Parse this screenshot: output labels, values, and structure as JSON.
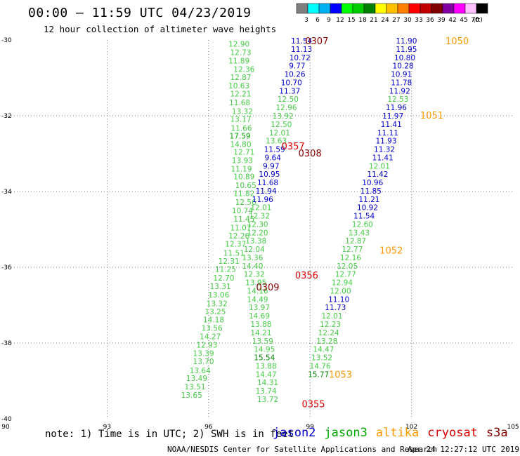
{
  "title": "00:00 – 11:59 UTC 04/23/2019",
  "subtitle": "12 hour collection of altimeter wave heights",
  "note": "note: 1) Time is in UTC; 2) SWH is in feet",
  "credit": "NOAA/NESDIS Center for Satellite Applications and Research",
  "timestamp": "Apr 24 12:27:12 UTC 2019",
  "satellites": [
    {
      "name": "jason2",
      "color": "#0000cc"
    },
    {
      "name": "jason3",
      "color": "#00aa00"
    },
    {
      "name": "altika",
      "color": "#ff9900"
    },
    {
      "name": "cryosat",
      "color": "#dd0000"
    },
    {
      "name": "s3a",
      "color": "#880000"
    }
  ],
  "legend": {
    "unit": "(ft)",
    "bins": [
      {
        "label": "3",
        "color": "#7f7f7f"
      },
      {
        "label": "6",
        "color": "#00ffff"
      },
      {
        "label": "9",
        "color": "#00b0f0"
      },
      {
        "label": "12",
        "color": "#0000ff"
      },
      {
        "label": "15",
        "color": "#00ff00"
      },
      {
        "label": "18",
        "color": "#00cc00"
      },
      {
        "label": "21",
        "color": "#008000"
      },
      {
        "label": "24",
        "color": "#ffff00"
      },
      {
        "label": "27",
        "color": "#ffc000"
      },
      {
        "label": "30",
        "color": "#ff8000"
      },
      {
        "label": "33",
        "color": "#ff0000"
      },
      {
        "label": "36",
        "color": "#c00000"
      },
      {
        "label": "39",
        "color": "#800000"
      },
      {
        "label": "42",
        "color": "#8000a0"
      },
      {
        "label": "45",
        "color": "#ff00ff"
      },
      {
        "label": "70",
        "color": "#ffc0ff"
      },
      {
        "label": "",
        "color": "#000000"
      }
    ]
  },
  "chart_data": {
    "type": "scatter",
    "xlim": [
      90,
      105
    ],
    "ylim": [
      -40,
      -30
    ],
    "xticks": [
      "90",
      "93",
      "96",
      "99",
      "102",
      "105"
    ],
    "yticks": [
      "-30",
      "-32",
      "-34",
      "-36",
      "-38",
      "-40"
    ],
    "grid": true,
    "colors": {
      "low": "#00bb00",
      "mid": "#0000cc",
      "jason3": "#44cc44",
      "jason2": "#0000cc",
      "altika": "#ff9900",
      "cryosat": "#dd0000",
      "s3a": "#880000"
    },
    "tracks": [
      {
        "satellite": "jason3",
        "points": [
          [
            96.9,
            -30.1,
            "12.90"
          ],
          [
            96.95,
            -30.32,
            "12.73"
          ],
          [
            96.9,
            -30.55,
            "11.89"
          ],
          [
            97.05,
            -30.77,
            "12.36"
          ],
          [
            96.95,
            -30.98,
            "12.87"
          ],
          [
            96.9,
            -31.2,
            "10.63"
          ],
          [
            96.95,
            -31.42,
            "12.21"
          ],
          [
            96.92,
            -31.65,
            "11.68"
          ],
          [
            97.0,
            -31.88,
            "13.32"
          ],
          [
            96.95,
            -32.08,
            "13.17"
          ],
          [
            96.97,
            -32.32,
            "11.66"
          ],
          [
            96.93,
            -32.53,
            "17.59"
          ],
          [
            96.95,
            -32.75,
            "14.80"
          ],
          [
            97.05,
            -32.95,
            "12.71"
          ],
          [
            97.0,
            -33.18,
            "13.93"
          ],
          [
            96.97,
            -33.4,
            "11.19"
          ],
          [
            97.05,
            -33.6,
            "10.89"
          ],
          [
            97.1,
            -33.83,
            "10.65"
          ],
          [
            97.05,
            -34.05,
            "11.82"
          ],
          [
            97.1,
            -34.28,
            "12.56"
          ],
          [
            97.0,
            -34.5,
            "10.74"
          ],
          [
            97.05,
            -34.72,
            "11.45"
          ],
          [
            96.95,
            -34.95,
            "11.07"
          ],
          [
            96.9,
            -35.17,
            "12.26"
          ],
          [
            96.8,
            -35.38,
            "12.37"
          ],
          [
            96.75,
            -35.62,
            "11.51"
          ],
          [
            96.6,
            -35.83,
            "12.31"
          ],
          [
            96.5,
            -36.05,
            "11.25"
          ],
          [
            96.45,
            -36.28,
            "12.70"
          ],
          [
            96.35,
            -36.5,
            "13.31"
          ],
          [
            96.3,
            -36.72,
            "13.06"
          ],
          [
            96.25,
            -36.95,
            "13.32"
          ],
          [
            96.2,
            -37.17,
            "13.25"
          ],
          [
            96.15,
            -37.38,
            "14.18"
          ],
          [
            96.1,
            -37.6,
            "13.56"
          ],
          [
            96.05,
            -37.82,
            "14.27"
          ],
          [
            95.95,
            -38.05,
            "12.93"
          ],
          [
            95.85,
            -38.27,
            "13.39"
          ],
          [
            95.85,
            -38.48,
            "13.70"
          ],
          [
            95.75,
            -38.72,
            "13.64"
          ],
          [
            95.65,
            -38.93,
            "13.49"
          ],
          [
            95.6,
            -39.15,
            "13.51"
          ],
          [
            95.5,
            -39.37,
            "13.65"
          ]
        ]
      },
      {
        "satellite": "jason2",
        "points": [
          [
            98.75,
            -30.02,
            "11.54"
          ],
          [
            98.75,
            -30.24,
            "11.13"
          ],
          [
            98.7,
            -30.46,
            "10.72"
          ],
          [
            98.62,
            -30.68,
            "9.77"
          ],
          [
            98.55,
            -30.9,
            "10.26"
          ],
          [
            98.45,
            -31.12,
            "10.70"
          ],
          [
            98.4,
            -31.34,
            "11.37"
          ],
          [
            98.35,
            -31.56,
            "12.50"
          ],
          [
            98.3,
            -31.78,
            "12.96"
          ],
          [
            98.2,
            -32.0,
            "13.92"
          ],
          [
            98.15,
            -32.22,
            "12.50"
          ],
          [
            98.1,
            -32.44,
            "12.01"
          ],
          [
            98.0,
            -32.66,
            "13.63"
          ],
          [
            97.95,
            -32.88,
            "11.59"
          ],
          [
            97.9,
            -33.1,
            "9.64"
          ],
          [
            97.85,
            -33.32,
            "9.97"
          ],
          [
            97.8,
            -33.54,
            "10.95"
          ],
          [
            97.75,
            -33.76,
            "11.68"
          ],
          [
            97.7,
            -33.98,
            "11.94"
          ],
          [
            97.6,
            -34.2,
            "11.96"
          ],
          [
            97.55,
            -34.42,
            "12.01"
          ],
          [
            97.5,
            -34.64,
            "12.32"
          ],
          [
            97.45,
            -34.86,
            "12.30"
          ],
          [
            97.45,
            -35.08,
            "12.20"
          ],
          [
            97.4,
            -35.3,
            "13.38"
          ],
          [
            97.35,
            -35.52,
            "12.04"
          ],
          [
            97.3,
            -35.74,
            "13.36"
          ],
          [
            97.3,
            -35.96,
            "14.40"
          ],
          [
            97.35,
            -36.18,
            "12.32"
          ],
          [
            97.4,
            -36.4,
            "13.95"
          ],
          [
            97.45,
            -36.62,
            "14.16"
          ],
          [
            97.45,
            -36.84,
            "14.49"
          ],
          [
            97.5,
            -37.06,
            "13.97"
          ],
          [
            97.5,
            -37.28,
            "14.69"
          ],
          [
            97.55,
            -37.5,
            "13.88"
          ],
          [
            97.55,
            -37.72,
            "14.21"
          ],
          [
            97.6,
            -37.94,
            "13.59"
          ],
          [
            97.65,
            -38.16,
            "14.95"
          ],
          [
            97.65,
            -38.38,
            "15.54"
          ],
          [
            97.7,
            -38.6,
            "13.88"
          ],
          [
            97.7,
            -38.82,
            "14.47"
          ],
          [
            97.75,
            -39.04,
            "14.31"
          ],
          [
            97.7,
            -39.26,
            "13.74"
          ],
          [
            97.75,
            -39.48,
            "13.72"
          ]
        ]
      },
      {
        "satellite": "jason2",
        "points": [
          [
            101.85,
            -30.02,
            "11.90"
          ],
          [
            101.85,
            -30.24,
            "11.95"
          ],
          [
            101.8,
            -30.46,
            "10.80"
          ],
          [
            101.75,
            -30.68,
            "10.28"
          ],
          [
            101.7,
            -30.9,
            "10.91"
          ],
          [
            101.7,
            -31.12,
            "11.78"
          ],
          [
            101.65,
            -31.34,
            "11.92"
          ],
          [
            101.6,
            -31.56,
            "12.53"
          ],
          [
            101.55,
            -31.78,
            "11.96"
          ],
          [
            101.45,
            -32.0,
            "11.97"
          ],
          [
            101.4,
            -32.22,
            "11.41"
          ],
          [
            101.3,
            -32.44,
            "11.11"
          ],
          [
            101.25,
            -32.66,
            "11.93"
          ],
          [
            101.2,
            -32.88,
            "11.32"
          ],
          [
            101.15,
            -33.1,
            "11.41"
          ],
          [
            101.05,
            -33.32,
            "12.01"
          ],
          [
            101.0,
            -33.54,
            "11.42"
          ],
          [
            100.85,
            -33.76,
            "10.96"
          ],
          [
            100.8,
            -33.98,
            "11.85"
          ],
          [
            100.75,
            -34.2,
            "11.21"
          ],
          [
            100.7,
            -34.42,
            "10.92"
          ],
          [
            100.6,
            -34.64,
            "11.54"
          ],
          [
            100.55,
            -34.86,
            "12.60"
          ],
          [
            100.45,
            -35.08,
            "13.43"
          ],
          [
            100.35,
            -35.3,
            "12.87"
          ],
          [
            100.25,
            -35.52,
            "12.77"
          ],
          [
            100.2,
            -35.74,
            "12.16"
          ],
          [
            100.1,
            -35.96,
            "12.05"
          ],
          [
            100.05,
            -36.18,
            "12.77"
          ],
          [
            99.95,
            -36.4,
            "12.94"
          ],
          [
            99.9,
            -36.62,
            "12.00"
          ],
          [
            99.85,
            -36.84,
            "11.10"
          ],
          [
            99.75,
            -37.06,
            "11.73"
          ],
          [
            99.65,
            -37.28,
            "12.01"
          ],
          [
            99.6,
            -37.5,
            "12.23"
          ],
          [
            99.55,
            -37.72,
            "12.24"
          ],
          [
            99.5,
            -37.94,
            "13.28"
          ],
          [
            99.4,
            -38.16,
            "14.47"
          ],
          [
            99.35,
            -38.38,
            "13.52"
          ],
          [
            99.3,
            -38.6,
            "14.76"
          ],
          [
            99.25,
            -38.82,
            "15.77"
          ]
        ]
      }
    ],
    "track_labels": [
      {
        "x": 99.2,
        "y": -30.02,
        "text": "0307",
        "satellite": "s3a"
      },
      {
        "x": 103.35,
        "y": -30.02,
        "text": "1050",
        "satellite": "altika"
      },
      {
        "x": 102.6,
        "y": -31.98,
        "text": "1051",
        "satellite": "altika"
      },
      {
        "x": 98.5,
        "y": -32.8,
        "text": "0357",
        "satellite": "cryosat"
      },
      {
        "x": 99.0,
        "y": -32.98,
        "text": "0308",
        "satellite": "s3a"
      },
      {
        "x": 101.4,
        "y": -35.55,
        "text": "1052",
        "satellite": "altika"
      },
      {
        "x": 98.9,
        "y": -36.2,
        "text": "0356",
        "satellite": "cryosat"
      },
      {
        "x": 97.75,
        "y": -36.52,
        "text": "0309",
        "satellite": "s3a"
      },
      {
        "x": 99.9,
        "y": -38.82,
        "text": "1053",
        "satellite": "altika"
      },
      {
        "x": 99.1,
        "y": -39.6,
        "text": "0355",
        "satellite": "cryosat"
      }
    ]
  }
}
